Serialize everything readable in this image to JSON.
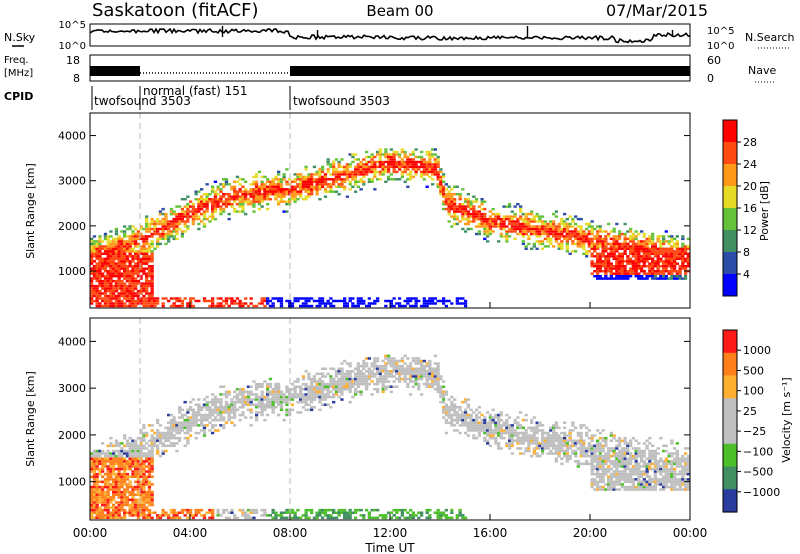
{
  "header": {
    "station": "Saskatoon (fitACF)",
    "beam": "Beam 00",
    "date": "07/Mar/2015"
  },
  "side_labels": {
    "nsky": "N.Sky",
    "nsearch": "N.Search",
    "freq_top": "Freq.",
    "freq_unit": "[MHz]",
    "nave": "Nave",
    "cpid": "CPID"
  },
  "chart_data": [
    {
      "type": "line",
      "name": "noise-panel",
      "left_ticks": [
        "10^5",
        "10^0"
      ],
      "right_ticks": [
        "10^5",
        "10^0"
      ],
      "xlim_hours": [
        0,
        24
      ]
    },
    {
      "type": "line",
      "name": "frequency-panel",
      "left_ticks": [
        "18",
        "8"
      ],
      "right_ticks": [
        "60",
        "0"
      ],
      "segments": [
        {
          "start_hour": 0,
          "end_hour": 2,
          "mode": "twofsound"
        },
        {
          "start_hour": 2,
          "end_hour": 8,
          "mode": "normal"
        },
        {
          "start_hour": 8,
          "end_hour": 24,
          "mode": "twofsound"
        }
      ]
    },
    {
      "type": "table",
      "name": "cpid-panel",
      "entries": [
        {
          "start_hour": 0,
          "label": "twofsound 3503"
        },
        {
          "start_hour": 2,
          "label": "normal (fast) 151"
        },
        {
          "start_hour": 8,
          "label": "twofsound 3503"
        }
      ]
    },
    {
      "type": "heatmap",
      "name": "power",
      "ylabel": "Slant Range [km]",
      "ylim": [
        180,
        4500
      ],
      "yticks": [
        "1000",
        "2000",
        "3000",
        "4000"
      ],
      "colorbar_label": "Power [dB]",
      "colorbar_ticks": [
        "4",
        "8",
        "12",
        "16",
        "20",
        "24",
        "28"
      ],
      "colors": [
        "#0000ff",
        "#2b4da8",
        "#3f8f63",
        "#63c23a",
        "#e6dc28",
        "#ff9a1a",
        "#ff4a12",
        "#ff0000"
      ]
    },
    {
      "type": "heatmap",
      "name": "velocity",
      "ylabel": "Slant Range [km]",
      "ylim": [
        180,
        4500
      ],
      "yticks": [
        "1000",
        "2000",
        "3000",
        "4000"
      ],
      "xlabel": "Time UT",
      "xticks": [
        "00:00",
        "04:00",
        "08:00",
        "12:00",
        "16:00",
        "20:00",
        "00:00"
      ],
      "colorbar_label": "Velocity [m s⁻¹]",
      "colorbar_ticks": [
        "1000",
        "500",
        "100",
        "25",
        "−25",
        "−100",
        "−500",
        "−1000"
      ],
      "colors": [
        "#2a3c9e",
        "#3f8f63",
        "#4dbf2a",
        "#bfbfbf",
        "#bfbfbf",
        "#ffb030",
        "#ff7f1a",
        "#ff1a1a"
      ]
    }
  ]
}
